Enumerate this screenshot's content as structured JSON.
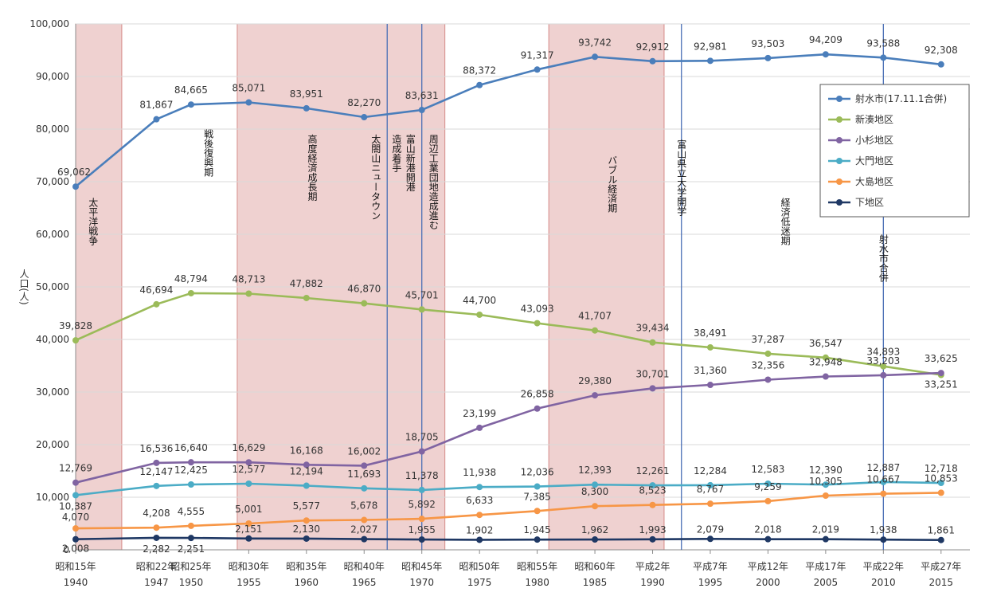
{
  "chart_data": {
    "type": "line",
    "xlabel": "",
    "ylabel": "人口(人)",
    "ylim": [
      0,
      100000
    ],
    "ytick_step": 10000,
    "grid": true,
    "legend_position": "right",
    "categories": [
      {
        "era": "昭和15年",
        "year": "1940"
      },
      {
        "era": "昭和22年",
        "year": "1947"
      },
      {
        "era": "昭和25年",
        "year": "1950"
      },
      {
        "era": "昭和30年",
        "year": "1955"
      },
      {
        "era": "昭和35年",
        "year": "1960"
      },
      {
        "era": "昭和40年",
        "year": "1965"
      },
      {
        "era": "昭和45年",
        "year": "1970"
      },
      {
        "era": "昭和50年",
        "year": "1975"
      },
      {
        "era": "昭和55年",
        "year": "1980"
      },
      {
        "era": "昭和60年",
        "year": "1985"
      },
      {
        "era": "平成2年",
        "year": "1990"
      },
      {
        "era": "平成7年",
        "year": "1995"
      },
      {
        "era": "平成12年",
        "year": "2000"
      },
      {
        "era": "平成17年",
        "year": "2005"
      },
      {
        "era": "平成22年",
        "year": "2010"
      },
      {
        "era": "平成27年",
        "year": "2015"
      }
    ],
    "series": [
      {
        "name": "射水市(17.11.1合併)",
        "color": "#4a7ebb",
        "values": [
          69062,
          81867,
          84665,
          85071,
          83951,
          82270,
          83631,
          88372,
          91317,
          93742,
          92912,
          92981,
          93503,
          94209,
          93588,
          92308
        ]
      },
      {
        "name": "新湊地区",
        "color": "#9bbb59",
        "values": [
          39828,
          46694,
          48794,
          48713,
          47882,
          46870,
          45701,
          44700,
          43093,
          41707,
          39434,
          38491,
          37287,
          36547,
          34893,
          33251
        ]
      },
      {
        "name": "小杉地区",
        "color": "#8064a2",
        "values": [
          12769,
          16536,
          16640,
          16629,
          16168,
          16002,
          18705,
          23199,
          26858,
          29380,
          30701,
          31360,
          32356,
          32948,
          33203,
          33625
        ]
      },
      {
        "name": "大門地区",
        "color": "#4bacc6",
        "values": [
          10387,
          12147,
          12425,
          12577,
          12194,
          11693,
          11378,
          11938,
          12036,
          12393,
          12261,
          12284,
          12583,
          12390,
          12887,
          12718
        ]
      },
      {
        "name": "大島地区",
        "color": "#f79646",
        "values": [
          4070,
          4208,
          4555,
          5001,
          5577,
          5678,
          5892,
          6633,
          7385,
          8300,
          8523,
          8767,
          9259,
          10305,
          10667,
          10853
        ]
      },
      {
        "name": "下地区",
        "color": "#1f3864",
        "values": [
          2008,
          2282,
          2251,
          2151,
          2130,
          2027,
          1955,
          1902,
          1945,
          1962,
          1993,
          2079,
          2018,
          2019,
          1938,
          1861
        ]
      }
    ],
    "labels": [
      [
        "69,062",
        "81,867",
        "84,665",
        "85,071",
        "83,951",
        "82,270",
        "83,631",
        "88,372",
        "91,317",
        "93,742",
        "92,912",
        "92,981",
        "93,503",
        "94,209",
        "93,588",
        "92,308"
      ],
      [
        "39,828",
        "46,694",
        "48,794",
        "48,713",
        "47,882",
        "46,870",
        "45,701",
        "44,700",
        "43,093",
        "41,707",
        "39,434",
        "38,491",
        "37,287",
        "36,547",
        "34,893",
        "33,251"
      ],
      [
        "12,769",
        "16,536",
        "16,640",
        "16,629",
        "16,168",
        "16,002",
        "18,705",
        "23,199",
        "26,858",
        "29,380",
        "30,701",
        "31,360",
        "32,356",
        "32,948",
        "33,203",
        "33,625"
      ],
      [
        "10,387",
        "12,147",
        "12,425",
        "12,577",
        "12,194",
        "11,693",
        "11,378",
        "11,938",
        "12,036",
        "12,393",
        "12,261",
        "12,284",
        "12,583",
        "12,390",
        "12,887",
        "12,718"
      ],
      [
        "4,070",
        "4,208",
        "4,555",
        "5,001",
        "5,577",
        "5,678",
        "5,892",
        "6,633",
        "7,385",
        "8,300",
        "8,523",
        "8,767",
        "9,259",
        "10,305",
        "10,667",
        "10,853"
      ],
      [
        "2,008",
        "2,282",
        "2,251",
        "2,151",
        "2,130",
        "2,027",
        "1,955",
        "1,902",
        "1,945",
        "1,962",
        "1,993",
        "2,079",
        "2,018",
        "2,019",
        "1,938",
        "1,861"
      ]
    ],
    "yticks": [
      "0",
      "10,000",
      "20,000",
      "30,000",
      "40,000",
      "50,000",
      "60,000",
      "70,000",
      "80,000",
      "90,000",
      "100,000"
    ],
    "shaded_periods": [
      {
        "from": 1940,
        "to": 1944,
        "color": "#e6b8b7"
      },
      {
        "from": 1954,
        "to": 1972,
        "color": "#e6b8b7"
      },
      {
        "from": 1981,
        "to": 1991,
        "color": "#e6b8b7"
      }
    ],
    "event_lines": [
      {
        "year": 1967
      },
      {
        "year": 1970
      },
      {
        "year": 1992.5
      },
      {
        "year": 2010
      }
    ],
    "annotations": [
      {
        "text": "太平洋戦争",
        "year": 1941.5,
        "y": 67000
      },
      {
        "text": "戦後復興期",
        "year": 1951.5,
        "y": 80000
      },
      {
        "text": "高度経済成長期",
        "year": 1960.5,
        "y": 79000
      },
      {
        "text": "太閤山ニュータウン",
        "year": 1966.0,
        "y": 79000
      },
      {
        "text": "造成着手",
        "year": 1967.8,
        "y": 79000
      },
      {
        "text": "富山新港開港",
        "year": 1969.0,
        "y": 79000
      },
      {
        "text": "周辺工業団地造成進む",
        "year": 1971.0,
        "y": 79000
      },
      {
        "text": "バブル経済期",
        "year": 1986.5,
        "y": 75000
      },
      {
        "text": "富山県立大学開学",
        "year": 1992.5,
        "y": 78000
      },
      {
        "text": "経済低迷期",
        "year": 2001.5,
        "y": 67000
      },
      {
        "text": "射水市合併",
        "year": 2010.0,
        "y": 60000
      }
    ]
  }
}
